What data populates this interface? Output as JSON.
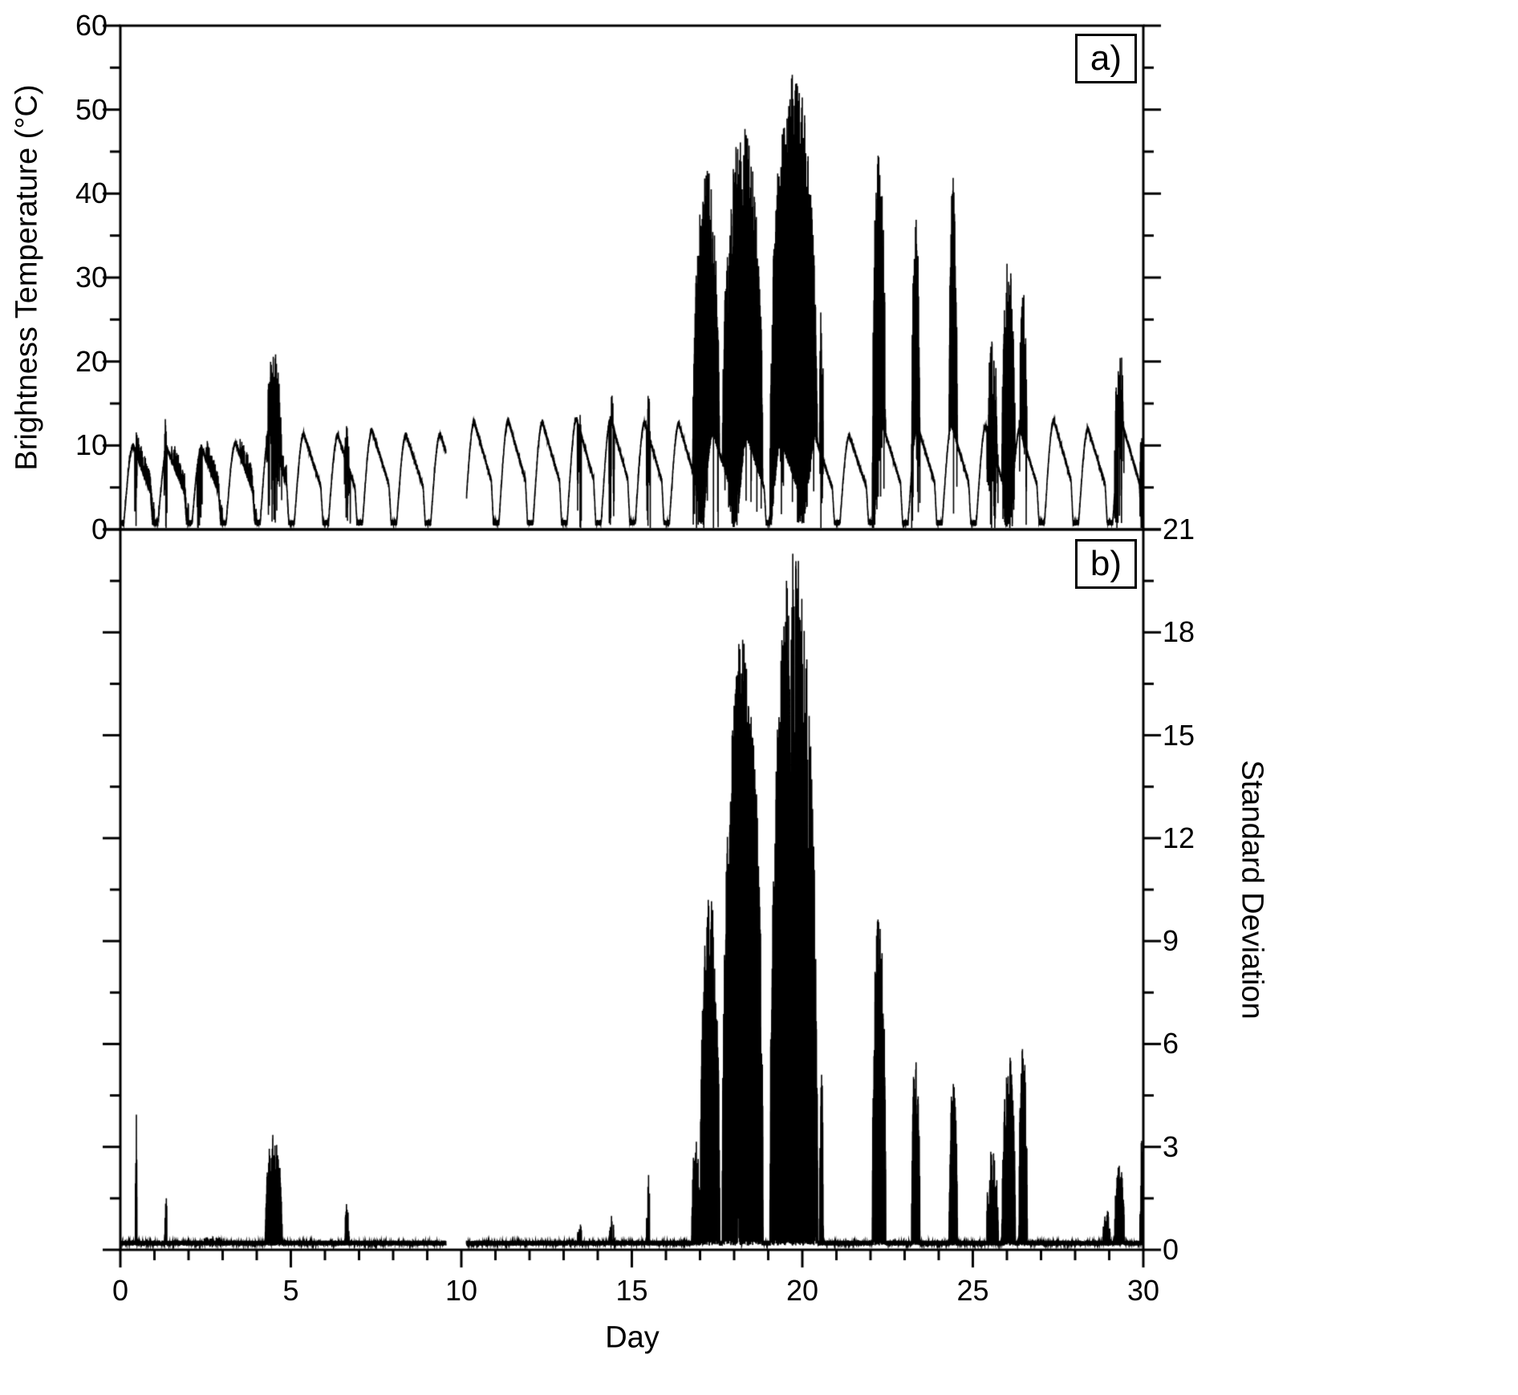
{
  "figure": {
    "background_color": "#ffffff",
    "stroke_color": "#000000"
  },
  "chart_data": [
    {
      "type": "line",
      "panel": "a",
      "panel_label": "a)",
      "series_name": "Brightness Temperature",
      "title": "",
      "ylabel": "Brightness Temperature (°C)",
      "xlabel": "",
      "xlim": [
        0,
        30
      ],
      "ylim": [
        0,
        60
      ],
      "yticks": [
        0,
        10,
        20,
        30,
        40,
        50,
        60
      ],
      "y_minor_step": 5,
      "xticks": [
        0,
        5,
        10,
        15,
        20,
        25,
        30
      ],
      "x_minor_step": 1,
      "grid": false,
      "legend": "none",
      "line_color": "#000000",
      "description": "Repeating diurnal brightness-temperature cycles peaking near 10-14 °C each day, interrupted by convective spike clusters reaching ~54 °C around days 17-20.5, with smaller spike events near days 0.5, 1.3, 4.5, 14.4, 15.5, 22.2, 23.3, 24.4, 25.5-26.6 and 29.3; short data gap near day 9.6-10.1.",
      "diurnal": {
        "daily_peaks": [
          10,
          9.6,
          9.8,
          10.3,
          11.8,
          11.4,
          11.2,
          11.8,
          11.3,
          11.4,
          12.8,
          13,
          12.8,
          13.2,
          13.2,
          12.8,
          12.6,
          11.5,
          11,
          10.5,
          11,
          11.2,
          12.2,
          12.4,
          12.4,
          12.3,
          12,
          13,
          12,
          12.6
        ],
        "low_level": 0.8
      },
      "data_gaps": [
        [
          9.55,
          10.15
        ]
      ],
      "spike_events": [
        [
          0.42,
          0.5,
          17,
          0.5
        ],
        [
          1.28,
          1.38,
          13.5,
          0.5
        ],
        [
          2.25,
          2.4,
          10.5,
          0.3
        ],
        [
          4.25,
          4.75,
          21.5,
          0.8
        ],
        [
          6.55,
          6.75,
          12.5,
          0.5
        ],
        [
          13.4,
          13.55,
          14.5,
          0.4
        ],
        [
          14.33,
          14.5,
          16,
          0.5
        ],
        [
          15.43,
          15.55,
          17,
          0.5
        ],
        [
          16.78,
          17.58,
          43.5,
          0.9
        ],
        [
          17.65,
          18.85,
          48,
          0.95
        ],
        [
          19.05,
          20.45,
          54.5,
          0.95
        ],
        [
          20.5,
          20.62,
          30,
          0.7
        ],
        [
          22.05,
          22.45,
          45,
          0.9
        ],
        [
          23.2,
          23.45,
          38,
          0.85
        ],
        [
          24.3,
          24.55,
          42.5,
          0.85
        ],
        [
          25.4,
          25.75,
          23,
          0.7
        ],
        [
          25.85,
          26.25,
          32.5,
          0.85
        ],
        [
          26.35,
          26.6,
          29,
          0.8
        ],
        [
          29.15,
          29.45,
          22.5,
          0.7
        ],
        [
          29.9,
          30.0,
          13.5,
          0.6
        ]
      ]
    },
    {
      "type": "line",
      "panel": "b",
      "panel_label": "b)",
      "series_name": "Standard Deviation",
      "title": "",
      "ylabel": "Standard Deviation",
      "xlabel": "Day",
      "xlim": [
        0,
        30
      ],
      "ylim": [
        0,
        21
      ],
      "yticks": [
        0,
        3,
        6,
        9,
        12,
        15,
        18,
        21
      ],
      "y_minor_step": 1.5,
      "xticks": [
        0,
        5,
        10,
        15,
        20,
        25,
        30
      ],
      "x_minor_step": 1,
      "grid": false,
      "legend": "none",
      "line_color": "#000000",
      "baseline": 0.12,
      "description": "Standard deviation near zero for quiet days, with spike clusters mirroring panel a: maxima ~20.5 near day 20, ~18 near day 18.5, ~10.5 day 17.3, ~10 day 22.2, ~6 days 23.3 and 26.5, smaller spikes near days 0.5, 1.3, 4.5, 6.7, 15.5 and 29.3.",
      "data_gaps": [
        [
          9.55,
          10.15
        ]
      ],
      "spike_events": [
        [
          0.44,
          0.49,
          4.2,
          0.5
        ],
        [
          1.3,
          1.37,
          2.2,
          0.5
        ],
        [
          2.2,
          3.3,
          0.4,
          0.3
        ],
        [
          4.25,
          4.75,
          3.5,
          0.8
        ],
        [
          6.58,
          6.72,
          1.4,
          0.5
        ],
        [
          13.38,
          13.55,
          0.8,
          0.4
        ],
        [
          14.33,
          14.5,
          1.0,
          0.4
        ],
        [
          15.43,
          15.53,
          2.8,
          0.5
        ],
        [
          16.75,
          17.0,
          3.2,
          0.8
        ],
        [
          17.0,
          17.58,
          10.5,
          0.9
        ],
        [
          17.65,
          18.85,
          18,
          0.95
        ],
        [
          19.05,
          20.45,
          20.5,
          0.95
        ],
        [
          20.5,
          20.62,
          5.5,
          0.6
        ],
        [
          22.05,
          22.45,
          10,
          0.85
        ],
        [
          23.2,
          23.45,
          6,
          0.8
        ],
        [
          24.3,
          24.55,
          5,
          0.8
        ],
        [
          25.4,
          25.75,
          3,
          0.6
        ],
        [
          25.85,
          26.25,
          5.8,
          0.8
        ],
        [
          26.35,
          26.6,
          6,
          0.7
        ],
        [
          28.8,
          29.05,
          1.2,
          0.4
        ],
        [
          29.15,
          29.45,
          2.5,
          0.6
        ],
        [
          29.9,
          30.0,
          3.2,
          0.6
        ]
      ]
    }
  ]
}
